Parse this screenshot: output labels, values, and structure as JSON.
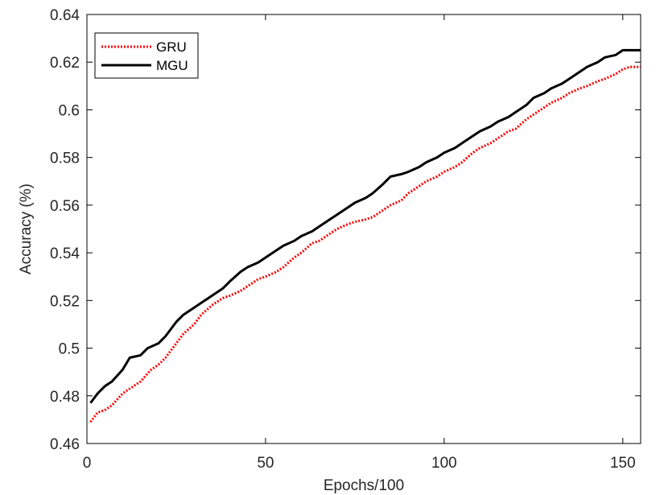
{
  "chart_data": {
    "type": "line",
    "title": "",
    "xlabel": "Epochs/100",
    "ylabel": "Accuracy (%)",
    "xlim": [
      0,
      155
    ],
    "ylim": [
      0.46,
      0.64
    ],
    "x_ticks": [
      0,
      50,
      100,
      150
    ],
    "x_tick_labels": [
      "0",
      "50",
      "100",
      "150"
    ],
    "y_ticks": [
      0.46,
      0.48,
      0.5,
      0.52,
      0.54,
      0.56,
      0.58,
      0.6,
      0.62,
      0.64
    ],
    "y_tick_labels": [
      "0.46",
      "0.48",
      "0.5",
      "0.52",
      "0.54",
      "0.56",
      "0.58",
      "0.6",
      "0.62",
      "0.64"
    ],
    "grid": false,
    "legend_position": "top-left",
    "series": [
      {
        "name": "GRU",
        "color": "#ff0000",
        "style": "dotted",
        "x": [
          1,
          2,
          3,
          5,
          7,
          10,
          12,
          15,
          18,
          20,
          22,
          25,
          27,
          30,
          32,
          35,
          38,
          40,
          43,
          45,
          48,
          50,
          53,
          55,
          58,
          60,
          63,
          65,
          68,
          70,
          73,
          75,
          78,
          80,
          83,
          85,
          88,
          90,
          93,
          95,
          98,
          100,
          103,
          105,
          108,
          110,
          113,
          115,
          118,
          120,
          123,
          125,
          128,
          130,
          133,
          135,
          138,
          140,
          143,
          145,
          148,
          150,
          152,
          155
        ],
        "y": [
          0.469,
          0.471,
          0.473,
          0.474,
          0.476,
          0.481,
          0.483,
          0.486,
          0.491,
          0.493,
          0.496,
          0.502,
          0.506,
          0.51,
          0.514,
          0.518,
          0.521,
          0.522,
          0.524,
          0.526,
          0.529,
          0.53,
          0.532,
          0.534,
          0.538,
          0.54,
          0.544,
          0.545,
          0.548,
          0.55,
          0.552,
          0.553,
          0.554,
          0.555,
          0.558,
          0.56,
          0.562,
          0.565,
          0.568,
          0.57,
          0.572,
          0.574,
          0.576,
          0.578,
          0.582,
          0.584,
          0.586,
          0.588,
          0.591,
          0.592,
          0.596,
          0.598,
          0.601,
          0.603,
          0.605,
          0.607,
          0.609,
          0.61,
          0.612,
          0.613,
          0.615,
          0.617,
          0.618,
          0.618
        ]
      },
      {
        "name": "MGU",
        "color": "#000000",
        "style": "solid",
        "x": [
          1,
          2,
          3,
          5,
          7,
          10,
          12,
          15,
          17,
          20,
          22,
          25,
          27,
          30,
          32,
          35,
          38,
          40,
          43,
          45,
          48,
          50,
          53,
          55,
          58,
          60,
          63,
          65,
          68,
          70,
          73,
          75,
          78,
          80,
          83,
          85,
          88,
          90,
          93,
          95,
          98,
          100,
          103,
          105,
          108,
          110,
          113,
          115,
          118,
          120,
          123,
          125,
          128,
          130,
          133,
          135,
          138,
          140,
          143,
          145,
          148,
          150,
          152,
          155
        ],
        "y": [
          0.477,
          0.479,
          0.481,
          0.484,
          0.486,
          0.491,
          0.496,
          0.497,
          0.5,
          0.502,
          0.505,
          0.511,
          0.514,
          0.517,
          0.519,
          0.522,
          0.525,
          0.528,
          0.532,
          0.534,
          0.536,
          0.538,
          0.541,
          0.543,
          0.545,
          0.547,
          0.549,
          0.551,
          0.554,
          0.556,
          0.559,
          0.561,
          0.563,
          0.565,
          0.569,
          0.572,
          0.573,
          0.574,
          0.576,
          0.578,
          0.58,
          0.582,
          0.584,
          0.586,
          0.589,
          0.591,
          0.593,
          0.595,
          0.597,
          0.599,
          0.602,
          0.605,
          0.607,
          0.609,
          0.611,
          0.613,
          0.616,
          0.618,
          0.62,
          0.622,
          0.623,
          0.625,
          0.625,
          0.625
        ]
      }
    ]
  }
}
